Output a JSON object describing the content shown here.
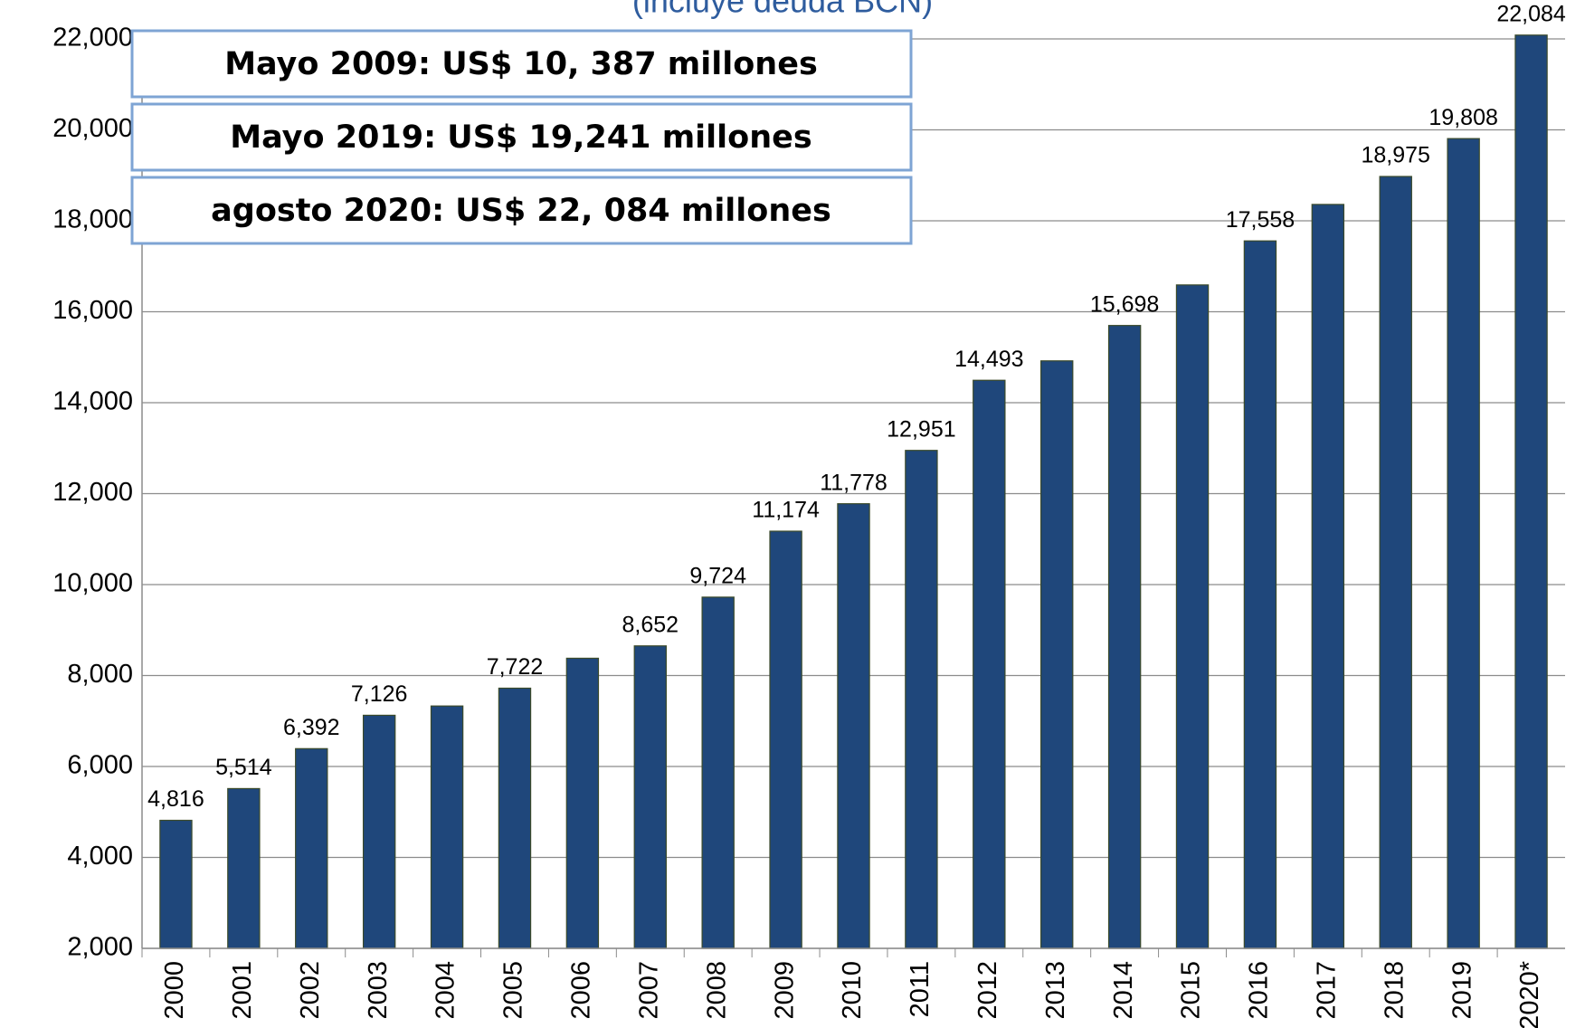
{
  "chart_data": {
    "type": "bar",
    "subtitle": "(incluye deuda BCN)",
    "annotations": [
      "Mayo 2009:  US$ 10, 387 millones",
      "Mayo 2019: US$ 19,241 millones",
      "agosto 2020: US$ 22, 084 millones"
    ],
    "categories": [
      "2000",
      "2001",
      "2002",
      "2003",
      "2004",
      "2005",
      "2006",
      "2007",
      "2008",
      "2009",
      "2010",
      "2011",
      "2012",
      "2013",
      "2014",
      "2015",
      "2016",
      "2017",
      "2018",
      "2019",
      "2020*"
    ],
    "values": [
      4816,
      5514,
      6392,
      7126,
      7330,
      7722,
      8380,
      8652,
      9724,
      11174,
      11778,
      12951,
      14493,
      14920,
      15698,
      16590,
      17558,
      18360,
      18975,
      19808,
      22084
    ],
    "value_labels": [
      "4,816",
      "5,514",
      "6,392",
      "7,126",
      null,
      "7,722",
      null,
      "8,652",
      "9,724",
      "11,174",
      "11,778",
      "12,951",
      "14,493",
      null,
      "15,698",
      null,
      "17,558",
      null,
      "18,975",
      "19,808",
      "22,084"
    ],
    "color": "#1f477b",
    "ylim": [
      2000,
      22000
    ],
    "yticks": [
      {
        "value": 2000,
        "label": "2,000"
      },
      {
        "value": 4000,
        "label": "4,000"
      },
      {
        "value": 6000,
        "label": "6,000"
      },
      {
        "value": 8000,
        "label": "8,000"
      },
      {
        "value": 10000,
        "label": "10,000"
      },
      {
        "value": 12000,
        "label": "12,000"
      },
      {
        "value": 14000,
        "label": "14,000"
      },
      {
        "value": 16000,
        "label": "16,000"
      },
      {
        "value": 18000,
        "label": "18,000"
      },
      {
        "value": 20000,
        "label": "20,000"
      },
      {
        "value": 22000,
        "label": "22,000"
      }
    ],
    "grid": true
  }
}
